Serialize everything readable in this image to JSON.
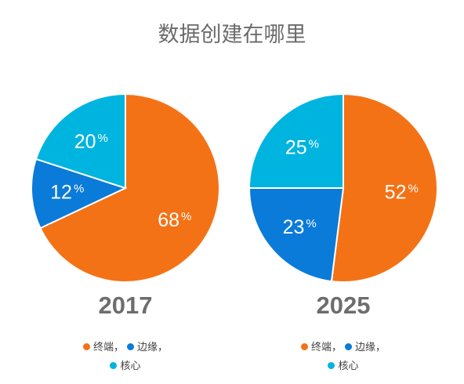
{
  "title": "数据创建在哪里",
  "colors": {
    "终端": "#f47216",
    "边缘": "#0a7bd8",
    "核心": "#00b4e0"
  },
  "chart_data": [
    {
      "type": "pie",
      "label": "2017",
      "slices": [
        {
          "name": "终端",
          "value": 68,
          "label": "68%"
        },
        {
          "name": "边缘",
          "value": 12,
          "label": "12%"
        },
        {
          "name": "核心",
          "value": 20,
          "label": "20%"
        }
      ],
      "legend": [
        "终端，",
        "边缘，",
        "核心"
      ]
    },
    {
      "type": "pie",
      "label": "2025",
      "slices": [
        {
          "name": "终端",
          "value": 52,
          "label": "52%"
        },
        {
          "name": "边缘",
          "value": 23,
          "label": "23%"
        },
        {
          "name": "核心",
          "value": 25,
          "label": "25%"
        }
      ],
      "legend": [
        "终端，",
        "边缘，",
        "核心"
      ]
    }
  ]
}
